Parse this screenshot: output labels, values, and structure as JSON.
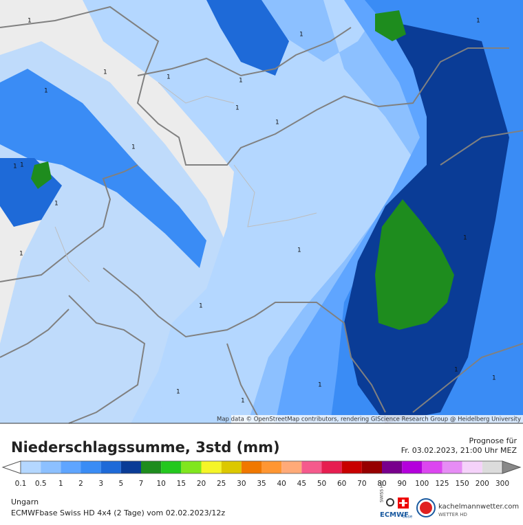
{
  "map": {
    "attribution": "Map data © OpenStreetMap contributors, rendering GIScience Research Group @ Heidelberg University",
    "max_labels": [
      "1",
      "1",
      "1",
      "1",
      "1",
      "1",
      "1",
      "1",
      "1",
      "1",
      "1",
      "1",
      "1",
      "1",
      "1",
      "1",
      "1",
      "1",
      "1",
      "1",
      "1",
      "1"
    ]
  },
  "header": {
    "title": "Niederschlagssumme, 3std (mm)",
    "forecast_label": "Prognose für",
    "forecast_time": "Fr. 03.02.2023, 21:00 Uhr MEZ"
  },
  "legend": {
    "labels": [
      "0.1",
      "0.5",
      "1",
      "2",
      "3",
      "5",
      "7",
      "10",
      "15",
      "20",
      "25",
      "30",
      "35",
      "40",
      "45",
      "50",
      "60",
      "70",
      "80",
      "90",
      "100",
      "125",
      "150",
      "200",
      "300"
    ],
    "colors": [
      "#b4d7ff",
      "#8cc0ff",
      "#5fa5ff",
      "#3a8cf5",
      "#1e6ad8",
      "#0a3c96",
      "#1e8c1e",
      "#24c81e",
      "#80e61e",
      "#f5f528",
      "#dcc800",
      "#f07800",
      "#ff9632",
      "#ffaa78",
      "#f55a8c",
      "#e61e50",
      "#c80000",
      "#960000",
      "#78008c",
      "#b400dc",
      "#dc46f0",
      "#e68cf5",
      "#f5d2fa",
      "#dcdcdc"
    ],
    "under_color": "#ffffff",
    "over_color": "#888888"
  },
  "footer": {
    "region": "Ungarn",
    "model": "ECMWFbase Swiss HD 4x4 (2 Tage) vom 02.02.2023/12z",
    "ecmwf_logo": "ECMWF",
    "ecmwf_sub": "base",
    "swiss_logo": "SWISS HD",
    "brand": "kachelmannwetter.com",
    "brand_sub": "WETTER HD"
  }
}
